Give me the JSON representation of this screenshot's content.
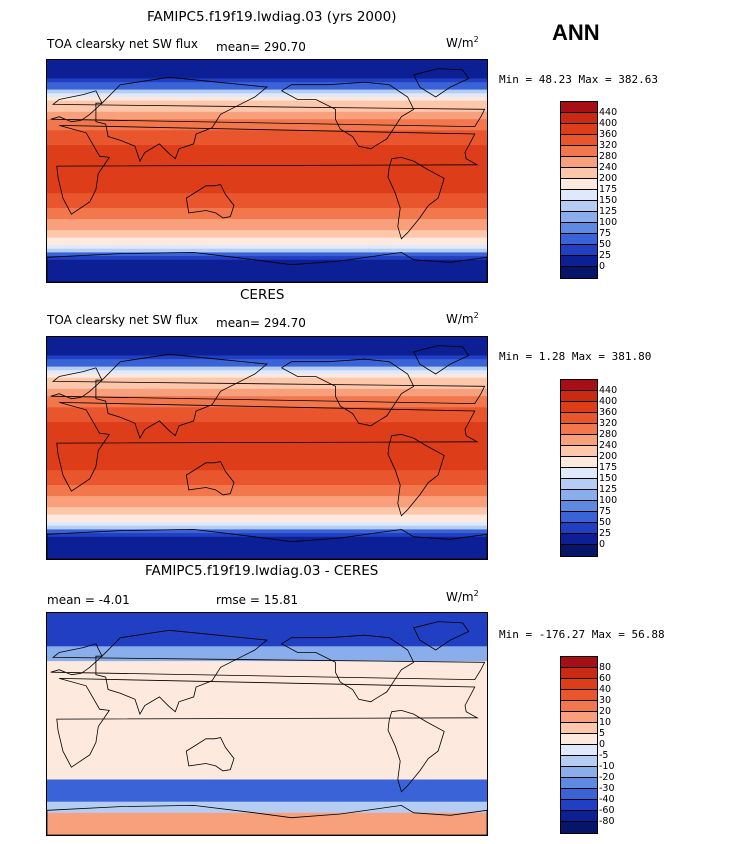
{
  "season": "ANN",
  "units_base": "W/m",
  "units_exp": "2",
  "panels": [
    {
      "title": "FAMIPC5.f19f19.lwdiag.03 (yrs 2000)",
      "variable": "TOA clearsky net SW flux",
      "mean_text": "mean= 290.70",
      "extra_text": "",
      "min_max": "Min =  48.23 Max = 382.63",
      "levels": [
        "440",
        "400",
        "360",
        "320",
        "280",
        "240",
        "200",
        "175",
        "150",
        "125",
        "100",
        "75",
        "50",
        "25",
        "0"
      ],
      "colors": [
        "#a50f15",
        "#cb2a12",
        "#dd3d19",
        "#e9552c",
        "#f2774d",
        "#f8a07b",
        "#fdc7ac",
        "#fde9dd",
        "#dfe9fb",
        "#b5cdf3",
        "#8aaeec",
        "#5e8ae1",
        "#3a63d8",
        "#213fc2",
        "#0d1f94",
        "#071568"
      ]
    },
    {
      "title": "CERES",
      "variable": "TOA clearsky net SW flux",
      "mean_text": "mean= 294.70",
      "extra_text": "",
      "min_max": "Min =   1.28 Max = 381.80",
      "levels": [
        "440",
        "400",
        "360",
        "320",
        "280",
        "240",
        "200",
        "175",
        "150",
        "125",
        "100",
        "75",
        "50",
        "25",
        "0"
      ],
      "colors": [
        "#a50f15",
        "#cb2a12",
        "#dd3d19",
        "#e9552c",
        "#f2774d",
        "#f8a07b",
        "#fdc7ac",
        "#fde9dd",
        "#dfe9fb",
        "#b5cdf3",
        "#8aaeec",
        "#5e8ae1",
        "#3a63d8",
        "#213fc2",
        "#0d1f94",
        "#071568"
      ]
    },
    {
      "title": "FAMIPC5.f19f19.lwdiag.03 - CERES",
      "variable": "",
      "mean_text": "mean =   -4.01",
      "extra_text": "rmse =   15.81",
      "min_max": "Min = -176.27 Max =  56.88",
      "levels": [
        "80",
        "60",
        "40",
        "30",
        "20",
        "10",
        "5",
        "0",
        "-5",
        "-10",
        "-20",
        "-30",
        "-40",
        "-60",
        "-80"
      ],
      "colors": [
        "#a50f15",
        "#cb2a12",
        "#dd3d19",
        "#e9552c",
        "#f2774d",
        "#f8a07b",
        "#fdc7ac",
        "#fde9dd",
        "#dfe9fb",
        "#b5cdf3",
        "#8aaeec",
        "#5e8ae1",
        "#3a63d8",
        "#213fc2",
        "#0d1f94",
        "#071568"
      ]
    }
  ],
  "chart_data": [
    {
      "type": "heatmap",
      "title": "FAMIPC5.f19f19.lwdiag.03 (yrs 2000)",
      "variable": "TOA clearsky net SW flux",
      "units": "W/m2",
      "mean": 290.7,
      "min": 48.23,
      "max": 382.63,
      "contour_levels": [
        0,
        25,
        50,
        75,
        100,
        125,
        150,
        175,
        200,
        240,
        280,
        320,
        360,
        400,
        440
      ],
      "zonal_bands": [
        {
          "lat": [
            60,
            90
          ],
          "value_range": [
            0,
            200
          ]
        },
        {
          "lat": [
            40,
            60
          ],
          "value_range": [
            200,
            280
          ]
        },
        {
          "lat": [
            20,
            40
          ],
          "value_range": [
            280,
            360
          ]
        },
        {
          "lat": [
            -20,
            20
          ],
          "value_range": [
            360,
            400
          ]
        },
        {
          "lat": [
            -40,
            -20
          ],
          "value_range": [
            280,
            360
          ]
        },
        {
          "lat": [
            -60,
            -40
          ],
          "value_range": [
            175,
            280
          ]
        },
        {
          "lat": [
            -90,
            -60
          ],
          "value_range": [
            0,
            175
          ]
        }
      ]
    },
    {
      "type": "heatmap",
      "title": "CERES",
      "variable": "TOA clearsky net SW flux",
      "units": "W/m2",
      "mean": 294.7,
      "min": 1.28,
      "max": 381.8,
      "contour_levels": [
        0,
        25,
        50,
        75,
        100,
        125,
        150,
        175,
        200,
        240,
        280,
        320,
        360,
        400,
        440
      ],
      "zonal_bands": [
        {
          "lat": [
            60,
            90
          ],
          "value_range": [
            0,
            200
          ]
        },
        {
          "lat": [
            40,
            60
          ],
          "value_range": [
            200,
            280
          ]
        },
        {
          "lat": [
            20,
            40
          ],
          "value_range": [
            280,
            360
          ]
        },
        {
          "lat": [
            -20,
            20
          ],
          "value_range": [
            360,
            400
          ]
        },
        {
          "lat": [
            -40,
            -20
          ],
          "value_range": [
            280,
            360
          ]
        },
        {
          "lat": [
            -60,
            -40
          ],
          "value_range": [
            175,
            280
          ]
        },
        {
          "lat": [
            -90,
            -60
          ],
          "value_range": [
            0,
            175
          ]
        }
      ]
    },
    {
      "type": "heatmap",
      "title": "FAMIPC5.f19f19.lwdiag.03 - CERES",
      "units": "W/m2",
      "mean": -4.01,
      "rmse": 15.81,
      "min": -176.27,
      "max": 56.88,
      "contour_levels": [
        -80,
        -60,
        -40,
        -30,
        -20,
        -10,
        -5,
        0,
        5,
        10,
        20,
        30,
        40,
        60,
        80
      ],
      "zonal_bands": [
        {
          "lat": [
            60,
            90
          ],
          "value_range": [
            -60,
            0
          ]
        },
        {
          "lat": [
            40,
            60
          ],
          "value_range": [
            -20,
            0
          ]
        },
        {
          "lat": [
            -40,
            40
          ],
          "value_range": [
            0,
            5
          ]
        },
        {
          "lat": [
            -60,
            -40
          ],
          "value_range": [
            -40,
            0
          ]
        },
        {
          "lat": [
            -90,
            -60
          ],
          "value_range": [
            -40,
            20
          ]
        }
      ]
    }
  ]
}
